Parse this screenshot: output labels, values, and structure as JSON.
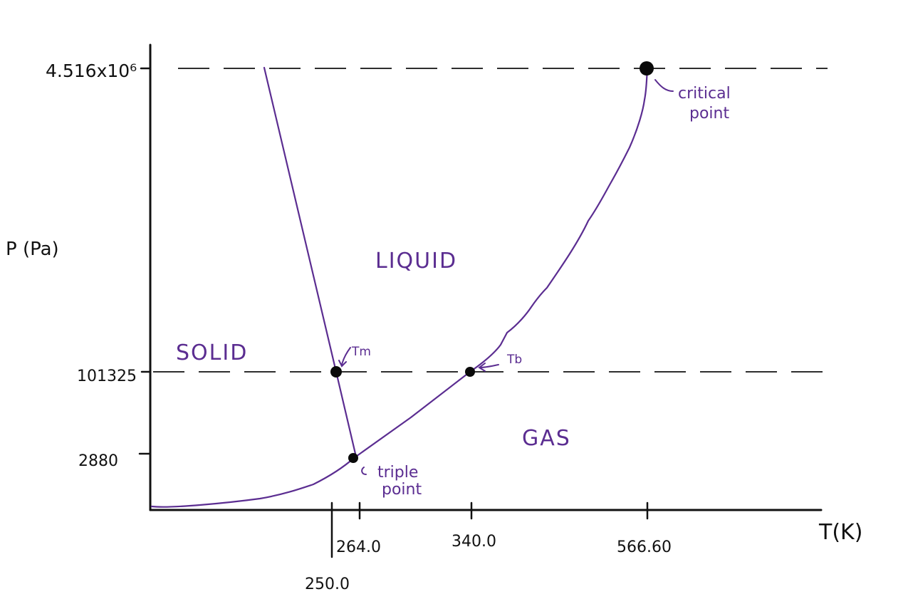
{
  "colors": {
    "curve": "#5b2d91",
    "ink": "#111111",
    "point": "#0a0a0a"
  },
  "axes": {
    "y_label": "P (Pa)",
    "x_label": "T(K)",
    "y_ticks": [
      "4.516x10⁶",
      "101325",
      "2880"
    ],
    "x_ticks": [
      "250.0",
      "264.0",
      "340.0",
      "566.60"
    ]
  },
  "regions": {
    "solid": "SOLID",
    "liquid": "LIQUID",
    "gas": "GAS"
  },
  "points": {
    "tm": "Tm",
    "tb": "Tb",
    "triple_line1": "triple",
    "triple_line2": "point",
    "critical_line1": "critical",
    "critical_line2": "point"
  }
}
